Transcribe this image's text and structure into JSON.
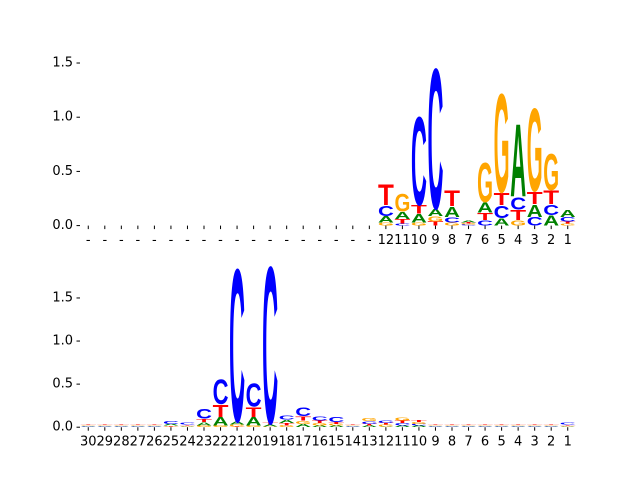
{
  "chart_data": [
    {
      "type": "logo",
      "categories": [
        "-",
        "-",
        "-",
        "-",
        "-",
        "-",
        "-",
        "-",
        "-",
        "-",
        "-",
        "-",
        "-",
        "-",
        "-",
        "-",
        "-",
        "-",
        "12",
        "11",
        "10",
        "9",
        "8",
        "7",
        "6",
        "5",
        "4",
        "3",
        "2",
        "1"
      ],
      "series": [
        {
          "name": "A",
          "color": "#008000",
          "values": [
            0,
            0,
            0,
            0,
            0,
            0,
            0,
            0,
            0,
            0,
            0,
            0,
            0,
            0,
            0,
            0,
            0,
            0,
            0.06,
            0.07,
            0.08,
            0.07,
            0.1,
            0.02,
            0.1,
            0.07,
            0.7,
            0.12,
            0.1,
            0.07
          ]
        },
        {
          "name": "C",
          "color": "#0000ff",
          "values": [
            0,
            0,
            0,
            0,
            0,
            0,
            0,
            0,
            0,
            0,
            0,
            0,
            0,
            0,
            0,
            0,
            0,
            0,
            0.1,
            0.02,
            0.85,
            1.35,
            0.05,
            0.01,
            0.05,
            0.12,
            0.12,
            0.08,
            0.1,
            0.04
          ]
        },
        {
          "name": "G",
          "color": "#ffa500",
          "values": [
            0,
            0,
            0,
            0,
            0,
            0,
            0,
            0,
            0,
            0,
            0,
            0,
            0,
            0,
            0,
            0,
            0,
            0,
            0.03,
            0.17,
            0.03,
            0.05,
            0.03,
            0.01,
            0.38,
            0.95,
            0.05,
            0.8,
            0.35,
            0.02
          ]
        },
        {
          "name": "T",
          "color": "#ff0000",
          "values": [
            0,
            0,
            0,
            0,
            0,
            0,
            0,
            0,
            0,
            0,
            0,
            0,
            0,
            0,
            0,
            0,
            0,
            0,
            0.2,
            0.04,
            0.08,
            0.04,
            0.15,
            0.01,
            0.07,
            0.12,
            0.1,
            0.12,
            0.13,
            0.02
          ]
        }
      ],
      "ylim": [
        0,
        1.55
      ],
      "yticks": [
        {
          "value": 0,
          "label": "0.0"
        },
        {
          "value": 0.5,
          "label": "0.5"
        },
        {
          "value": 1,
          "label": "1.0"
        },
        {
          "value": 1.5,
          "label": "1.5"
        }
      ]
    },
    {
      "type": "logo",
      "categories": [
        "30",
        "29",
        "28",
        "27",
        "26",
        "25",
        "24",
        "23",
        "22",
        "21",
        "20",
        "19",
        "18",
        "17",
        "16",
        "15",
        "14",
        "13",
        "12",
        "11",
        "10",
        "9",
        "8",
        "7",
        "6",
        "5",
        "4",
        "3",
        "2",
        "1"
      ],
      "series": [
        {
          "name": "A",
          "color": "#008000",
          "values": [
            0.01,
            0.01,
            0.01,
            0.01,
            0.01,
            0.02,
            0.01,
            0.04,
            0.1,
            0.04,
            0.1,
            0.02,
            0.04,
            0.04,
            0.02,
            0.02,
            0.01,
            0.02,
            0.01,
            0.02,
            0.02,
            0.01,
            0.01,
            0.01,
            0.01,
            0.01,
            0.01,
            0.01,
            0.01,
            0.01
          ]
        },
        {
          "name": "C",
          "color": "#0000ff",
          "values": [
            0.01,
            0.01,
            0.01,
            0.01,
            0.01,
            0.04,
            0.02,
            0.12,
            0.3,
            1.85,
            0.28,
            1.9,
            0.05,
            0.1,
            0.05,
            0.06,
            0.01,
            0.03,
            0.03,
            0.03,
            0.02,
            0.01,
            0.01,
            0.01,
            0.01,
            0.01,
            0.01,
            0.01,
            0.01,
            0.02
          ]
        },
        {
          "name": "G",
          "color": "#ffa500",
          "values": [
            0.01,
            0.01,
            0.01,
            0.01,
            0.01,
            0.01,
            0.01,
            0.02,
            0.02,
            0.02,
            0.02,
            0.01,
            0.02,
            0.04,
            0.03,
            0.02,
            0.01,
            0.04,
            0.02,
            0.04,
            0.02,
            0.01,
            0.01,
            0.01,
            0.01,
            0.01,
            0.01,
            0.01,
            0.01,
            0.01
          ]
        },
        {
          "name": "T",
          "color": "#ff0000",
          "values": [
            0.01,
            0.01,
            0.01,
            0.01,
            0.01,
            0.01,
            0.01,
            0.04,
            0.15,
            0.01,
            0.12,
            0.02,
            0.03,
            0.05,
            0.03,
            0.02,
            0.01,
            0.02,
            0.02,
            0.03,
            0.02,
            0.01,
            0.01,
            0.01,
            0.01,
            0.01,
            0.01,
            0.01,
            0.01,
            0.01
          ]
        }
      ],
      "ylim": [
        0,
        1.95
      ],
      "yticks": [
        {
          "value": 0,
          "label": "0.0"
        },
        {
          "value": 0.5,
          "label": "0.5"
        },
        {
          "value": 1,
          "label": "1.0"
        },
        {
          "value": 1.5,
          "label": "1.5"
        }
      ]
    }
  ]
}
